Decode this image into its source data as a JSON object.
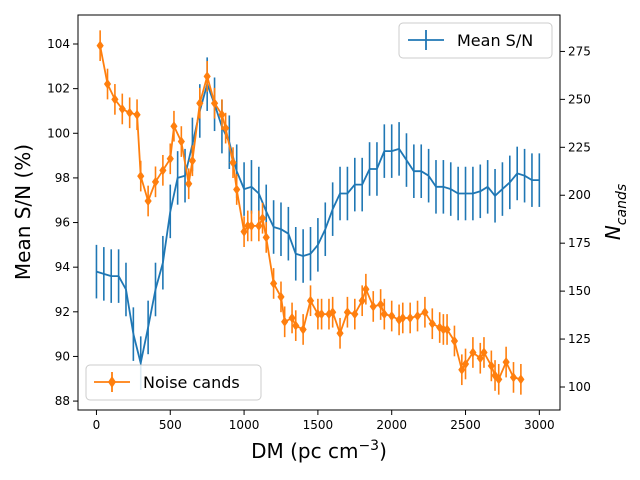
{
  "chart_data": {
    "type": "line",
    "xlabel": "DM (pc cm",
    "xlabel_sup": "−3",
    "xlabel_end": ")",
    "ylabel": "Mean S/N (%)",
    "ylabel_right": "N",
    "ylabel_right_sub": "cands",
    "xlim": [
      -125,
      3140
    ],
    "ylim": [
      87.6,
      105.3
    ],
    "ylim_right": [
      88,
      294
    ],
    "xticks": [
      0,
      500,
      1000,
      1500,
      2000,
      2500,
      3000
    ],
    "yticks": [
      88,
      90,
      92,
      94,
      96,
      98,
      100,
      102,
      104
    ],
    "yticks_right": [
      100,
      125,
      150,
      175,
      200,
      225,
      250,
      275
    ],
    "series": [
      {
        "name": "Mean S/N",
        "axis": "left",
        "color": "#1f77b4",
        "legend_loc": "upper right",
        "x": [
          0,
          50,
          100,
          150,
          200,
          250,
          300,
          350,
          400,
          450,
          500,
          550,
          600,
          650,
          700,
          750,
          800,
          850,
          900,
          950,
          1000,
          1050,
          1100,
          1150,
          1200,
          1250,
          1300,
          1350,
          1400,
          1450,
          1500,
          1550,
          1600,
          1650,
          1700,
          1750,
          1800,
          1850,
          1900,
          1950,
          2000,
          2050,
          2100,
          2150,
          2200,
          2250,
          2300,
          2350,
          2400,
          2450,
          2500,
          2550,
          2600,
          2650,
          2700,
          2750,
          2800,
          2850,
          2900,
          2950,
          3000
        ],
        "y": [
          93.8,
          93.7,
          93.6,
          93.6,
          93.0,
          91.0,
          89.7,
          91.3,
          93.0,
          94.2,
          96.5,
          98.0,
          98.1,
          99.5,
          101.0,
          102.2,
          101.3,
          100.3,
          99.6,
          98.3,
          97.5,
          97.6,
          97.3,
          96.5,
          95.8,
          95.7,
          95.5,
          94.6,
          94.5,
          94.6,
          95.0,
          95.7,
          96.6,
          97.3,
          97.3,
          97.7,
          97.7,
          98.4,
          98.4,
          99.2,
          99.2,
          99.3,
          98.8,
          98.3,
          98.3,
          98.1,
          97.6,
          97.6,
          97.5,
          97.3,
          97.3,
          97.3,
          97.4,
          97.6,
          97.2,
          97.5,
          97.8,
          98.2,
          98.1,
          97.9,
          97.9
        ],
        "err": [
          1.2,
          1.2,
          1.2,
          1.2,
          1.2,
          1.2,
          1.2,
          1.2,
          1.2,
          1.2,
          1.2,
          1.2,
          1.2,
          1.2,
          1.2,
          1.2,
          1.2,
          1.2,
          1.2,
          1.2,
          1.2,
          1.2,
          1.2,
          1.2,
          1.2,
          1.2,
          1.2,
          1.2,
          1.2,
          1.2,
          1.2,
          1.2,
          1.2,
          1.2,
          1.2,
          1.2,
          1.2,
          1.2,
          1.2,
          1.2,
          1.2,
          1.2,
          1.2,
          1.2,
          1.2,
          1.2,
          1.2,
          1.2,
          1.2,
          1.2,
          1.2,
          1.2,
          1.2,
          1.2,
          1.2,
          1.2,
          1.2,
          1.2,
          1.2,
          1.2,
          1.2
        ],
        "marker": "none"
      },
      {
        "name": "Noise cands",
        "axis": "right",
        "color": "#ff7f0e",
        "legend_loc": "lower left",
        "marker": "diamond",
        "x": [
          25,
          75,
          125,
          175,
          225,
          275,
          300,
          350,
          400,
          450,
          500,
          525,
          575,
          625,
          650,
          700,
          750,
          800,
          850,
          875,
          925,
          950,
          1000,
          1025,
          1050,
          1100,
          1125,
          1150,
          1200,
          1250,
          1275,
          1325,
          1350,
          1400,
          1450,
          1500,
          1525,
          1575,
          1600,
          1650,
          1700,
          1750,
          1800,
          1825,
          1875,
          1925,
          1950,
          2000,
          2050,
          2075,
          2125,
          2175,
          2225,
          2275,
          2325,
          2350,
          2375,
          2425,
          2475,
          2500,
          2550,
          2600,
          2625,
          2675,
          2700,
          2725,
          2775,
          2825,
          2875
        ],
        "y": [
          278,
          258,
          250,
          245,
          243,
          242,
          210,
          197,
          207,
          213,
          219,
          236,
          228,
          206,
          218,
          248,
          262,
          248,
          242,
          235,
          217,
          203,
          181,
          184,
          184,
          184,
          188,
          178,
          154,
          147,
          134,
          136,
          132,
          130,
          145,
          138,
          138,
          138,
          139,
          128,
          139,
          138,
          145,
          151,
          142,
          143,
          138,
          137,
          135,
          136,
          136,
          137,
          139,
          133,
          131,
          130,
          130,
          124,
          109,
          112,
          118,
          115,
          118,
          111,
          106,
          104,
          113,
          105,
          104
        ],
        "err": [
          8,
          8,
          8,
          8,
          8,
          8,
          8,
          8,
          8,
          8,
          8,
          8,
          8,
          8,
          8,
          8,
          8,
          8,
          8,
          8,
          8,
          8,
          8,
          8,
          8,
          8,
          8,
          8,
          8,
          8,
          8,
          8,
          8,
          8,
          8,
          8,
          8,
          8,
          8,
          8,
          8,
          8,
          8,
          8,
          8,
          8,
          8,
          8,
          8,
          8,
          8,
          8,
          8,
          8,
          8,
          8,
          8,
          8,
          8,
          8,
          8,
          8,
          8,
          8,
          8,
          8,
          8,
          8,
          8
        ]
      }
    ]
  }
}
